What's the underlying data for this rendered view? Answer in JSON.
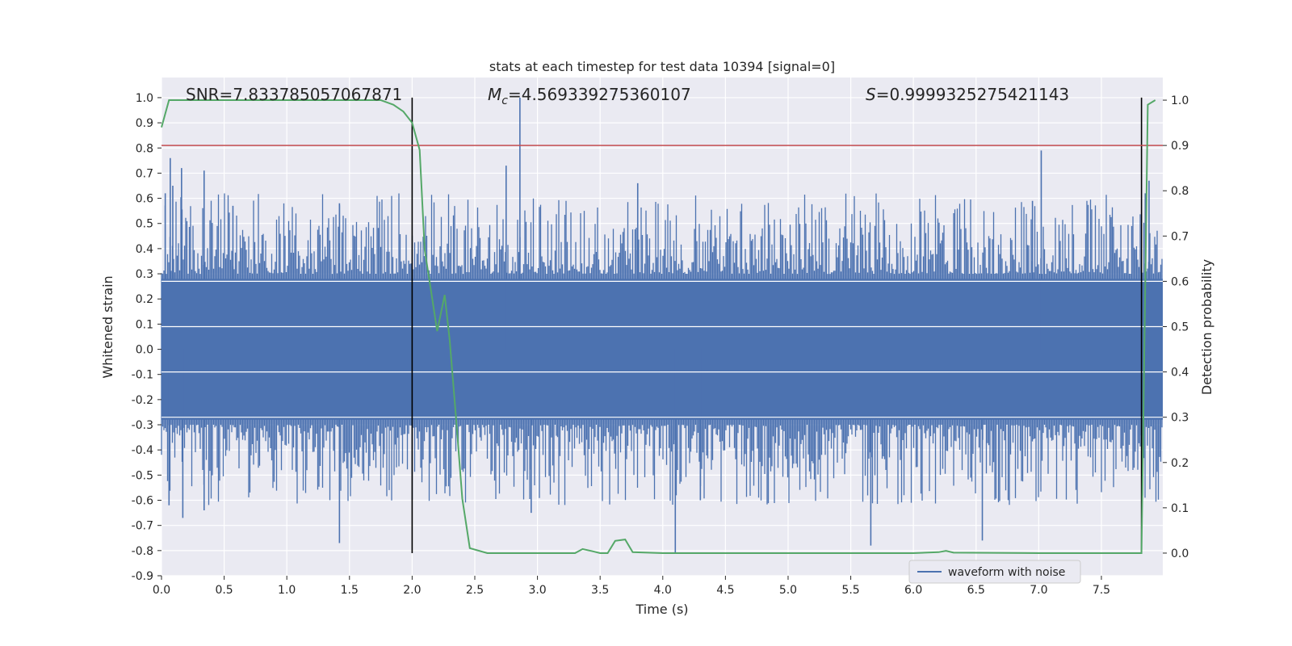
{
  "chart_data": {
    "type": "line",
    "title": "stats at each timestep for test data 10394 [signal=0]",
    "xlabel": "Time (s)",
    "ylabel": "Whitened strain",
    "ylabel_right": "Detection probability",
    "xlim": [
      0.0,
      7.99
    ],
    "ylim": [
      -0.9,
      1.08
    ],
    "ylim_right": [
      -0.05,
      1.05
    ],
    "x_ticks": [
      "0.0",
      "0.5",
      "1.0",
      "1.5",
      "2.0",
      "2.5",
      "3.0",
      "3.5",
      "4.0",
      "4.5",
      "5.0",
      "5.5",
      "6.0",
      "6.5",
      "7.0",
      "7.5"
    ],
    "y_ticks": [
      "-0.9",
      "-0.8",
      "-0.7",
      "-0.6",
      "-0.5",
      "-0.4",
      "-0.3",
      "-0.2",
      "-0.1",
      "0.0",
      "0.1",
      "0.2",
      "0.3",
      "0.4",
      "0.5",
      "0.6",
      "0.7",
      "0.8",
      "0.9",
      "1.0"
    ],
    "y_ticks_right": [
      "0.0",
      "0.1",
      "0.2",
      "0.3",
      "0.4",
      "0.5",
      "0.6",
      "0.7",
      "0.8",
      "0.9",
      "1.0"
    ],
    "grid": true,
    "legend": {
      "placement": "lower-right",
      "entries": [
        {
          "name": "waveform with noise",
          "color": "#4c72b0"
        }
      ]
    },
    "annotations": {
      "snr": "SNR=7.833785057067871",
      "mc_symbol": "M",
      "mc_sub": "c",
      "mc_value": "=4.569339275360107",
      "s_symbol": "S",
      "s_value": "=0.9999325275421143"
    },
    "threshold_right": 0.9,
    "vertical_markers_x": [
      2.0,
      7.82
    ],
    "vertical_marker_range_y": [
      -0.81,
      1.0
    ],
    "waveform": {
      "name": "waveform with noise",
      "color": "#4c72b0",
      "core_envelope": 0.28,
      "spikes": [
        {
          "x": 0.07,
          "y": 0.76
        },
        {
          "x": 0.09,
          "y": 0.65
        },
        {
          "x": 0.16,
          "y": 0.72
        },
        {
          "x": 0.34,
          "y": 0.71
        },
        {
          "x": 0.57,
          "y": 0.57
        },
        {
          "x": 1.42,
          "y": 0.58
        },
        {
          "x": 2.86,
          "y": 1.0
        },
        {
          "x": 2.75,
          "y": 0.73
        },
        {
          "x": 3.8,
          "y": 0.66
        },
        {
          "x": 7.02,
          "y": 0.79
        },
        {
          "x": 6.95,
          "y": 0.59
        },
        {
          "x": 7.88,
          "y": 0.67
        },
        {
          "x": 7.85,
          "y": 0.62
        },
        {
          "x": 0.03,
          "y": 0.62
        },
        {
          "x": 0.17,
          "y": -0.67
        },
        {
          "x": 0.34,
          "y": -0.64
        },
        {
          "x": 1.42,
          "y": -0.77
        },
        {
          "x": 4.1,
          "y": -0.81
        },
        {
          "x": 5.66,
          "y": -0.78
        },
        {
          "x": 6.55,
          "y": -0.76
        },
        {
          "x": 2.95,
          "y": -0.65
        },
        {
          "x": 0.06,
          "y": -0.62
        },
        {
          "x": 4.3,
          "y": -0.6
        }
      ]
    },
    "detection_probability": {
      "color": "#55a868",
      "x": [
        0.0,
        0.06,
        0.5,
        1.0,
        1.5,
        1.75,
        1.85,
        1.93,
        2.0,
        2.06,
        2.1,
        2.15,
        2.2,
        2.26,
        2.3,
        2.35,
        2.4,
        2.46,
        2.6,
        3.0,
        3.3,
        3.36,
        3.44,
        3.5,
        3.56,
        3.62,
        3.7,
        3.76,
        4.0,
        4.5,
        5.0,
        5.5,
        6.0,
        6.2,
        6.26,
        6.32,
        7.0,
        7.8,
        7.82,
        7.87,
        7.93
      ],
      "y": [
        0.94,
        1.0,
        1.0,
        1.0,
        1.0,
        1.0,
        0.99,
        0.975,
        0.95,
        0.89,
        0.67,
        0.58,
        0.49,
        0.57,
        0.47,
        0.3,
        0.12,
        0.011,
        0.0,
        0.0,
        0.0,
        0.009,
        0.004,
        0.0,
        0.0,
        0.027,
        0.03,
        0.002,
        0.0,
        0.0,
        0.0,
        0.0,
        0.0,
        0.002,
        0.005,
        0.001,
        0.0,
        0.0,
        0.0,
        0.99,
        1.0
      ]
    }
  }
}
